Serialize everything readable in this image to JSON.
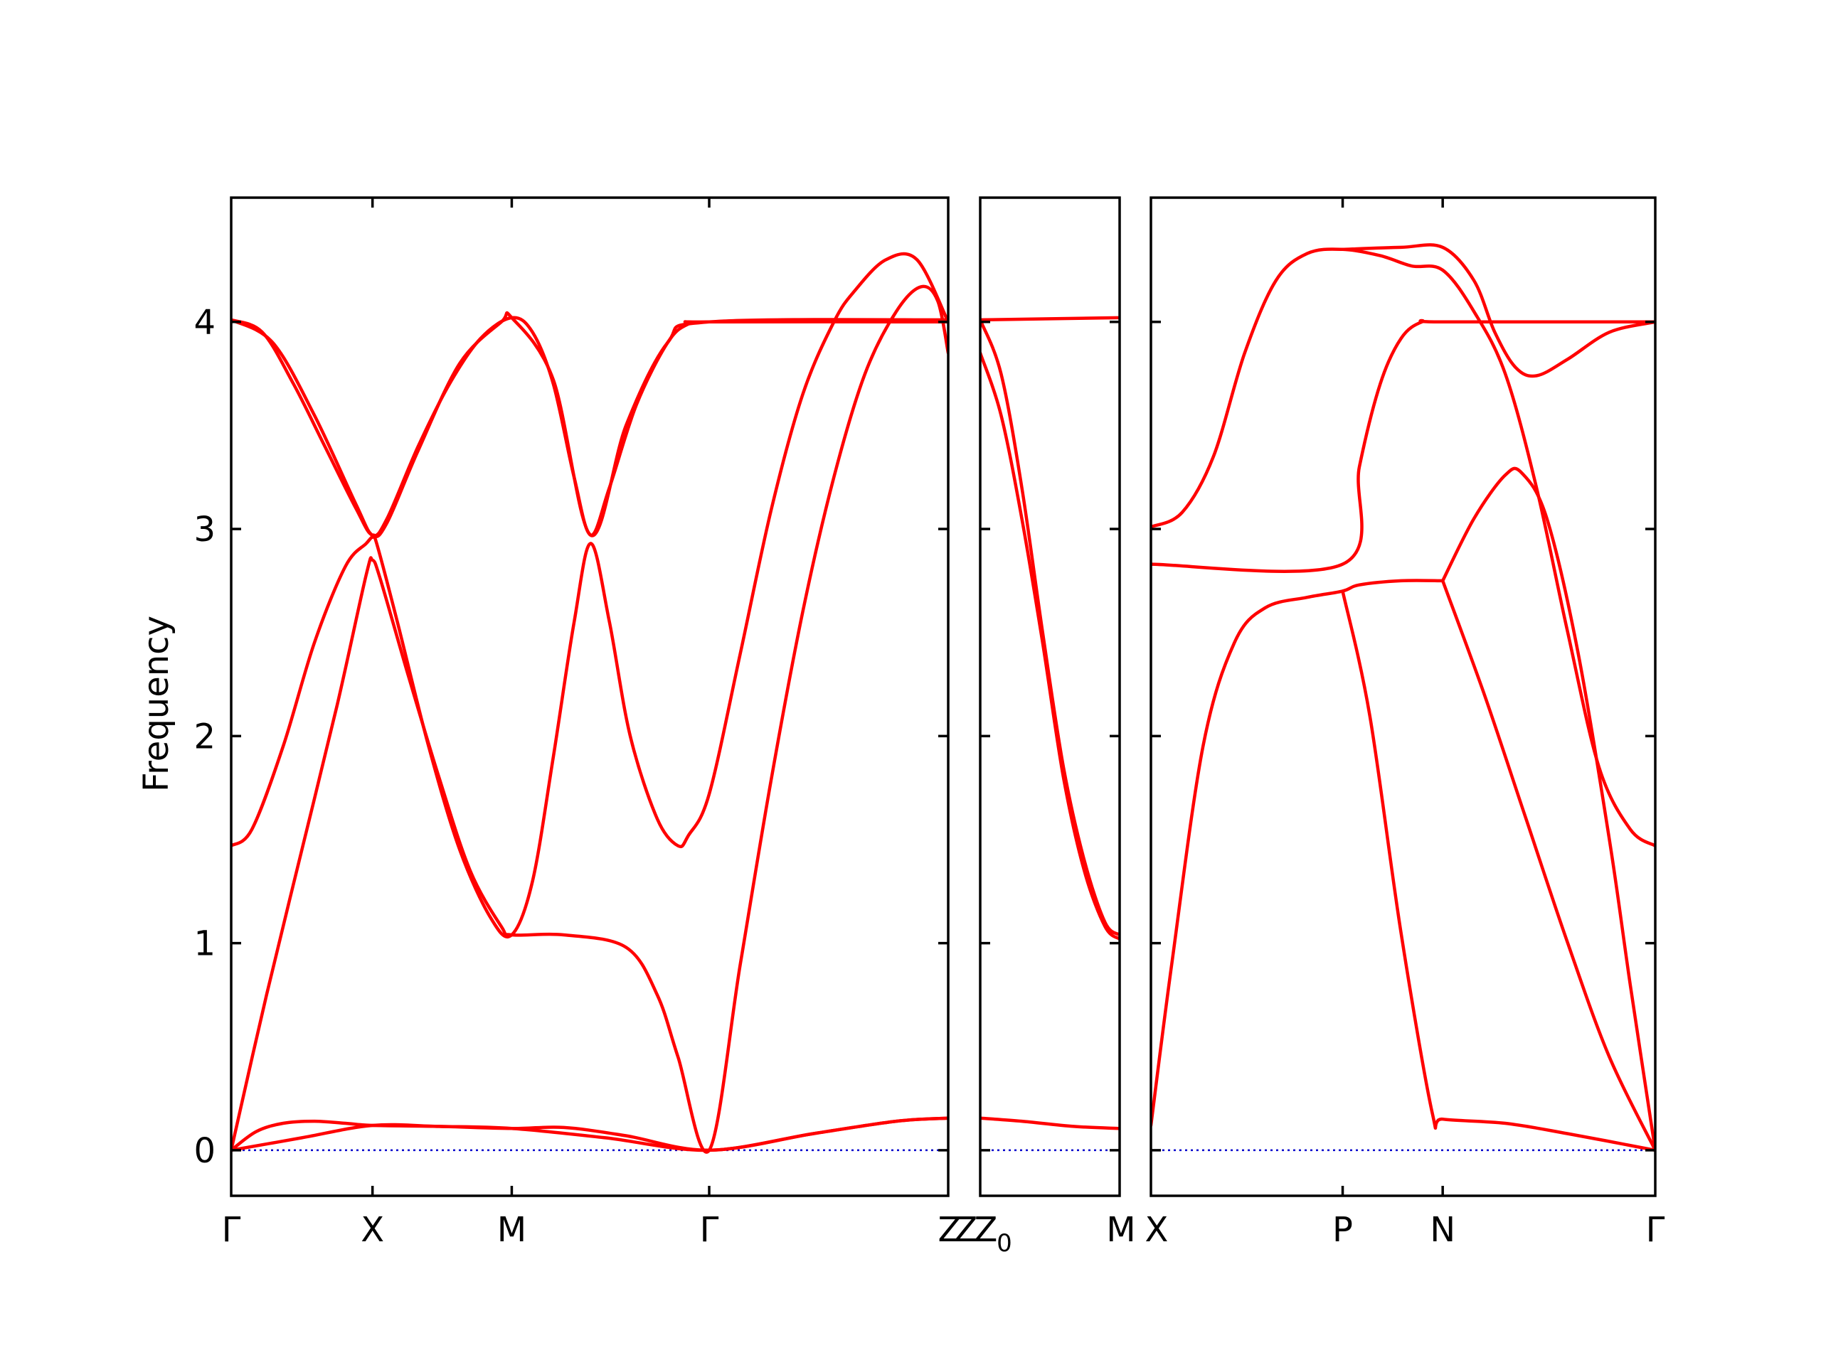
{
  "chart_data": {
    "type": "line",
    "ylabel": "Frequency",
    "ylim": [
      -0.22,
      4.6
    ],
    "yticks": [
      0,
      1,
      2,
      3,
      4
    ],
    "colors": {
      "bands": "#ff0000",
      "zero_line": "#0000cc"
    },
    "grid": false,
    "panels": [
      {
        "id": "panel-1",
        "path_labels": [
          "Γ",
          "X",
          "M",
          "Γ",
          "Z"
        ],
        "path_positions": [
          0,
          0.68,
          1.35,
          2.3,
          3.45
        ],
        "xlim": [
          0,
          3.45
        ],
        "bands": [
          [
            [
              0,
              0
            ],
            [
              0.34,
              0.06
            ],
            [
              0.68,
              0.12
            ],
            [
              1.0,
              0.115
            ],
            [
              1.35,
              0.105
            ],
            [
              1.8,
              0.06
            ],
            [
              2.3,
              0
            ],
            [
              2.8,
              0.08
            ],
            [
              3.2,
              0.14
            ],
            [
              3.45,
              0.155
            ]
          ],
          [
            [
              0,
              0
            ],
            [
              0.12,
              0.09
            ],
            [
              0.25,
              0.13
            ],
            [
              0.4,
              0.14
            ],
            [
              0.55,
              0.13
            ],
            [
              0.68,
              0.12
            ],
            [
              1.0,
              0.115
            ],
            [
              1.35,
              0.105
            ],
            [
              1.6,
              0.11
            ],
            [
              1.9,
              0.07
            ],
            [
              2.3,
              0
            ],
            [
              2.8,
              0.08
            ],
            [
              3.2,
              0.14
            ],
            [
              3.45,
              0.155
            ]
          ],
          [
            [
              0,
              0
            ],
            [
              0.17,
              0.75
            ],
            [
              0.34,
              1.45
            ],
            [
              0.51,
              2.15
            ],
            [
              0.65,
              2.78
            ],
            [
              0.68,
              2.85
            ],
            [
              0.72,
              2.75
            ],
            [
              0.85,
              2.3
            ],
            [
              1.0,
              1.8
            ],
            [
              1.15,
              1.35
            ],
            [
              1.3,
              1.08
            ],
            [
              1.35,
              1.04
            ],
            [
              1.6,
              1.04
            ],
            [
              1.9,
              0.98
            ],
            [
              2.05,
              0.75
            ],
            [
              2.15,
              0.45
            ],
            [
              2.3,
              0
            ],
            [
              2.45,
              0.9
            ],
            [
              2.6,
              1.8
            ],
            [
              2.75,
              2.6
            ],
            [
              2.9,
              3.25
            ],
            [
              3.05,
              3.75
            ],
            [
              3.2,
              4.05
            ],
            [
              3.32,
              4.17
            ],
            [
              3.4,
              4.1
            ],
            [
              3.45,
              3.85
            ]
          ],
          [
            [
              0,
              1.47
            ],
            [
              0.1,
              1.55
            ],
            [
              0.25,
              1.95
            ],
            [
              0.4,
              2.45
            ],
            [
              0.55,
              2.82
            ],
            [
              0.65,
              2.93
            ],
            [
              0.68,
              2.96
            ],
            [
              0.7,
              2.93
            ],
            [
              0.8,
              2.55
            ],
            [
              0.95,
              1.95
            ],
            [
              1.1,
              1.45
            ],
            [
              1.25,
              1.12
            ],
            [
              1.35,
              1.04
            ],
            [
              1.45,
              1.3
            ],
            [
              1.55,
              1.9
            ],
            [
              1.65,
              2.55
            ],
            [
              1.73,
              2.93
            ],
            [
              1.82,
              2.55
            ],
            [
              1.92,
              2.0
            ],
            [
              2.05,
              1.6
            ],
            [
              2.15,
              1.47
            ],
            [
              2.2,
              1.52
            ],
            [
              2.3,
              1.72
            ],
            [
              2.45,
              2.4
            ],
            [
              2.6,
              3.1
            ],
            [
              2.75,
              3.65
            ],
            [
              2.9,
              4.0
            ],
            [
              3.0,
              4.15
            ],
            [
              3.15,
              4.3
            ],
            [
              3.3,
              4.3
            ],
            [
              3.45,
              4.0
            ]
          ],
          [
            [
              0,
              4.01
            ],
            [
              0.15,
              3.95
            ],
            [
              0.3,
              3.7
            ],
            [
              0.45,
              3.4
            ],
            [
              0.6,
              3.1
            ],
            [
              0.68,
              2.97
            ],
            [
              0.75,
              3.05
            ],
            [
              0.9,
              3.4
            ],
            [
              1.05,
              3.7
            ],
            [
              1.2,
              3.92
            ],
            [
              1.35,
              4.02
            ],
            [
              1.45,
              3.95
            ],
            [
              1.55,
              3.7
            ],
            [
              1.65,
              3.25
            ],
            [
              1.73,
              2.97
            ],
            [
              1.82,
              3.2
            ],
            [
              1.95,
              3.6
            ],
            [
              2.1,
              3.9
            ],
            [
              2.2,
              3.99
            ],
            [
              2.3,
              4.0
            ],
            [
              3.45,
              4.0
            ]
          ],
          [
            [
              0,
              4.01
            ],
            [
              0.2,
              3.9
            ],
            [
              0.4,
              3.55
            ],
            [
              0.6,
              3.12
            ],
            [
              0.68,
              2.97
            ],
            [
              0.75,
              3.03
            ],
            [
              0.9,
              3.38
            ],
            [
              1.1,
              3.8
            ],
            [
              1.3,
              4.0
            ],
            [
              1.35,
              4.02
            ],
            [
              1.55,
              3.72
            ],
            [
              1.73,
              2.97
            ],
            [
              1.9,
              3.5
            ],
            [
              2.1,
              3.9
            ],
            [
              2.3,
              4.0
            ],
            [
              3.45,
              4.01
            ]
          ]
        ]
      },
      {
        "id": "panel-2",
        "path_labels": [
          "Z",
          "Z",
          "M"
        ],
        "subscript_label": "0",
        "path_positions": [
          0,
          0,
          0.67
        ],
        "xlim": [
          0,
          0.67
        ],
        "bands": [
          [
            [
              0,
              0.155
            ],
            [
              0.2,
              0.14
            ],
            [
              0.45,
              0.115
            ],
            [
              0.67,
              0.105
            ]
          ],
          [
            [
              0,
              4.01
            ],
            [
              0.67,
              4.02
            ]
          ],
          [
            [
              0,
              4.01
            ],
            [
              0.1,
              3.75
            ],
            [
              0.2,
              3.2
            ],
            [
              0.3,
              2.5
            ],
            [
              0.4,
              1.85
            ],
            [
              0.5,
              1.4
            ],
            [
              0.6,
              1.1
            ],
            [
              0.67,
              1.04
            ]
          ],
          [
            [
              0,
              3.85
            ],
            [
              0.1,
              3.55
            ],
            [
              0.2,
              3.05
            ],
            [
              0.3,
              2.45
            ],
            [
              0.4,
              1.8
            ],
            [
              0.5,
              1.35
            ],
            [
              0.6,
              1.08
            ],
            [
              0.67,
              1.02
            ]
          ]
        ]
      },
      {
        "id": "panel-3",
        "path_labels": [
          "X",
          "P",
          "N",
          "Γ"
        ],
        "path_positions": [
          0,
          0.92,
          1.4,
          2.42
        ],
        "xlim": [
          0,
          2.42
        ],
        "bands": [
          [
            [
              0,
              0.12
            ],
            [
              0.1,
              0.9
            ],
            [
              0.25,
              1.95
            ],
            [
              0.4,
              2.45
            ],
            [
              0.55,
              2.62
            ],
            [
              0.75,
              2.67
            ],
            [
              0.92,
              2.7
            ],
            [
              1.0,
              2.73
            ],
            [
              1.2,
              2.75
            ],
            [
              1.4,
              2.75
            ]
          ],
          [
            [
              0.92,
              2.7
            ],
            [
              1.05,
              2.1
            ],
            [
              1.2,
              1.05
            ],
            [
              1.35,
              0.18
            ],
            [
              1.4,
              0.15
            ],
            [
              1.7,
              0.13
            ],
            [
              2.0,
              0.08
            ],
            [
              2.42,
              0.0
            ]
          ],
          [
            [
              1.4,
              2.75
            ],
            [
              1.6,
              2.2
            ],
            [
              1.8,
              1.6
            ],
            [
              2.0,
              1.0
            ],
            [
              2.2,
              0.45
            ],
            [
              2.42,
              0.0
            ]
          ],
          [
            [
              0,
              2.83
            ],
            [
              0.92,
              2.83
            ],
            [
              1.0,
              3.3
            ],
            [
              1.1,
              3.7
            ],
            [
              1.2,
              3.92
            ],
            [
              1.3,
              4.0
            ],
            [
              1.4,
              4.0
            ],
            [
              2.42,
              4.0
            ]
          ],
          [
            [
              0,
              3.01
            ],
            [
              0.15,
              3.08
            ],
            [
              0.3,
              3.35
            ],
            [
              0.45,
              3.85
            ],
            [
              0.6,
              4.2
            ],
            [
              0.75,
              4.33
            ],
            [
              0.92,
              4.35
            ],
            [
              1.1,
              4.32
            ],
            [
              1.25,
              4.27
            ],
            [
              1.4,
              4.25
            ],
            [
              1.55,
              4.05
            ],
            [
              1.7,
              3.75
            ],
            [
              1.85,
              3.2
            ],
            [
              2.0,
              2.5
            ],
            [
              2.15,
              1.85
            ],
            [
              2.3,
              1.55
            ],
            [
              2.42,
              1.47
            ]
          ],
          [
            [
              0.92,
              4.35
            ],
            [
              1.2,
              4.36
            ],
            [
              1.4,
              4.36
            ],
            [
              1.55,
              4.2
            ],
            [
              1.65,
              3.95
            ],
            [
              1.75,
              3.78
            ],
            [
              1.85,
              3.74
            ],
            [
              2.0,
              3.82
            ],
            [
              2.2,
              3.95
            ],
            [
              2.42,
              4.0
            ]
          ],
          [
            [
              1.4,
              2.75
            ],
            [
              1.55,
              3.05
            ],
            [
              1.7,
              3.26
            ],
            [
              1.78,
              3.27
            ],
            [
              1.9,
              3.05
            ],
            [
              2.05,
              2.4
            ],
            [
              2.2,
              1.5
            ],
            [
              2.3,
              0.8
            ],
            [
              2.42,
              0.0
            ]
          ]
        ]
      }
    ]
  }
}
